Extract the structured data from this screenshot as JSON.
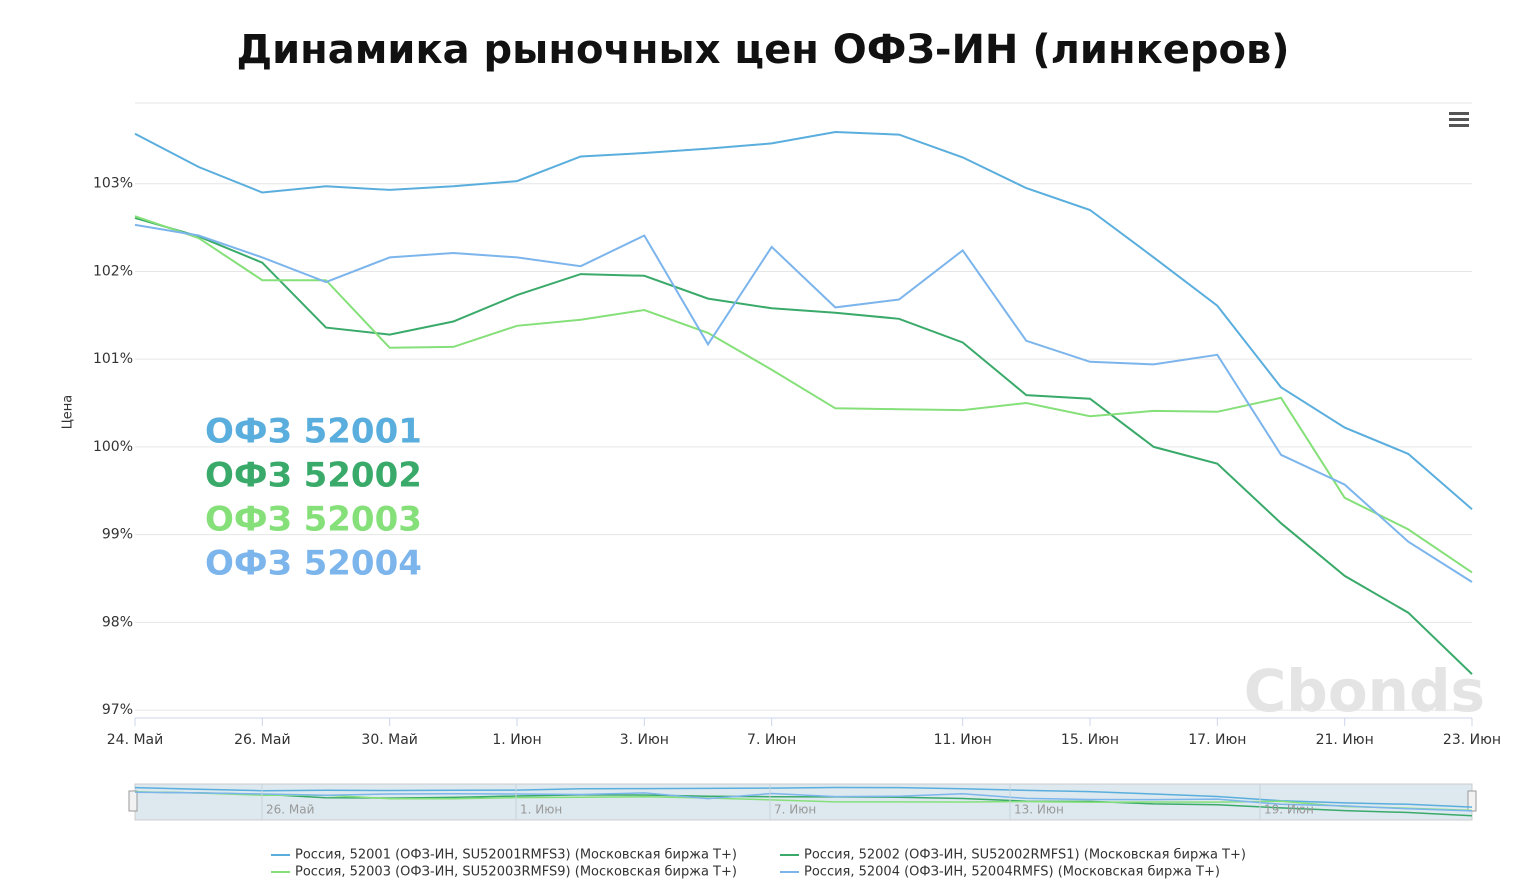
{
  "chart_data": {
    "type": "line",
    "title": "Динамика рыночных цен ОФЗ-ИН (линкеров)",
    "ylabel": "Цена",
    "watermark": "Cbonds",
    "categories": [
      "24. Май",
      null,
      "26. Май",
      null,
      "30. Май",
      null,
      "1. Июн",
      null,
      "3. Июн",
      null,
      "7. Июн",
      null,
      null,
      "11. Июн",
      null,
      "15. Июн",
      null,
      "17. Июн",
      null,
      "21. Июн",
      null,
      "23. Июн"
    ],
    "ylim": [
      96.91,
      103.92
    ],
    "yticks": [
      {
        "value": 97,
        "label": "97%"
      },
      {
        "value": 98,
        "label": "98%"
      },
      {
        "value": 99,
        "label": "99%"
      },
      {
        "value": 100,
        "label": "100%"
      },
      {
        "value": 101,
        "label": "101%"
      },
      {
        "value": 102,
        "label": "102%"
      },
      {
        "value": 103,
        "label": "103%"
      }
    ],
    "grid": true,
    "annotations": [
      "ОФЗ 52001",
      "ОФЗ 52002",
      "ОФЗ 52003",
      "ОФЗ 52004"
    ],
    "navigator_labels": [
      "26. Май",
      "1. Июн",
      "7. Июн",
      "13. Июн",
      "19. Июн"
    ],
    "legend_position": "bottom",
    "series": [
      {
        "name": "Россия, 52001 (ОФЗ-ИН, SU52001RMFS3) (Московская биржа Т+)",
        "color": "#5aaedd",
        "values": [
          103.57,
          103.19,
          102.9,
          102.97,
          102.93,
          102.97,
          103.03,
          103.31,
          103.35,
          103.4,
          103.46,
          103.59,
          103.56,
          103.3,
          102.95,
          102.7,
          102.16,
          101.61,
          100.68,
          100.22,
          99.92,
          99.29
        ]
      },
      {
        "name": "Россия, 52002 (ОФЗ-ИН, SU52002RMFS1) (Московская биржа Т+)",
        "color": "#3aaa6a",
        "values": [
          102.61,
          102.4,
          102.1,
          101.36,
          101.28,
          101.43,
          101.73,
          101.97,
          101.95,
          101.69,
          101.58,
          101.53,
          101.46,
          101.19,
          100.59,
          100.55,
          100.0,
          99.81,
          99.13,
          98.53,
          98.11,
          97.41
        ]
      },
      {
        "name": "Россия, 52003 (ОФЗ-ИН, SU52003RMFS9) (Московская биржа Т+)",
        "color": "#86e07a",
        "values": [
          102.63,
          102.38,
          101.9,
          101.9,
          101.13,
          101.14,
          101.38,
          101.45,
          101.56,
          101.3,
          100.88,
          100.44,
          100.43,
          100.42,
          100.5,
          100.35,
          100.41,
          100.4,
          100.56,
          99.42,
          99.06,
          98.57
        ]
      },
      {
        "name": "Россия, 52004 (ОФЗ-ИН, 52004RMFS) (Московская биржа Т+)",
        "color": "#7cb5ec",
        "values": [
          102.53,
          102.41,
          102.16,
          101.88,
          102.16,
          102.21,
          102.16,
          102.06,
          102.41,
          101.17,
          102.28,
          101.59,
          101.68,
          102.24,
          101.21,
          100.97,
          100.94,
          101.05,
          99.91,
          99.57,
          98.92,
          98.46
        ]
      }
    ]
  }
}
